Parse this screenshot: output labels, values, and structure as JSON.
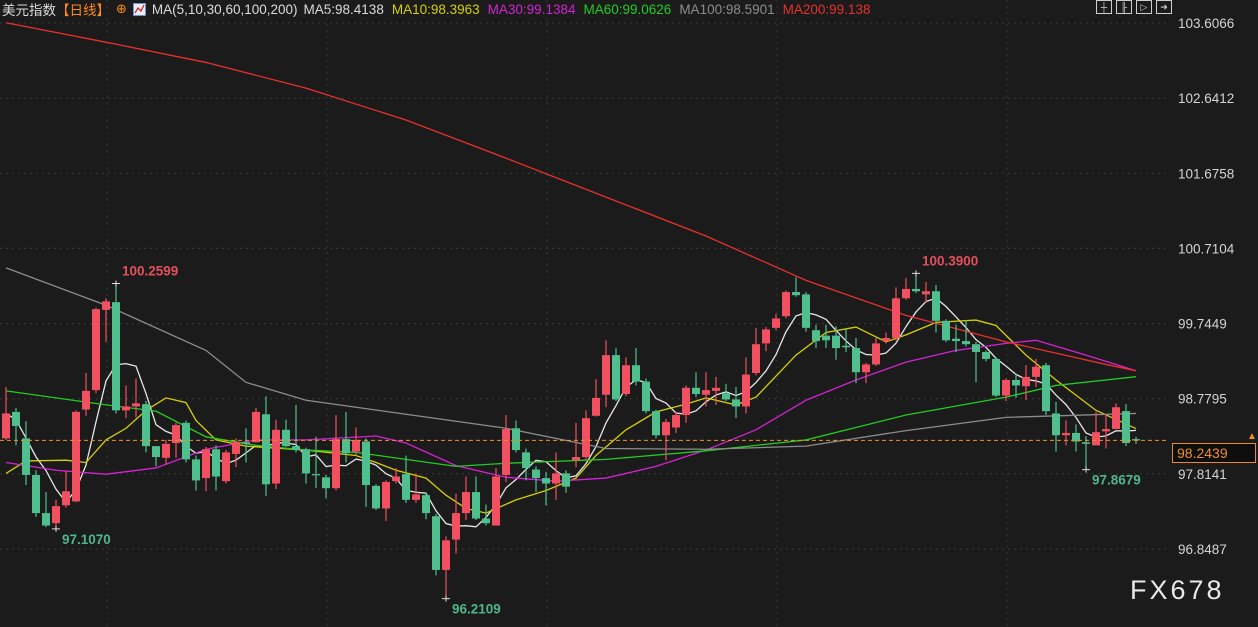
{
  "header": {
    "title": "美元指数",
    "period": "【日线】",
    "period_icon": "target-circle-icon",
    "indicator_icon": "chart-icon",
    "ma_label": "MA(5,10,30,60,100,200)",
    "values": [
      {
        "text": "MA5:98.4138",
        "color": "#dcdcdc"
      },
      {
        "text": "MA10:98.3963",
        "color": "#d4d000"
      },
      {
        "text": "MA30:99.1384",
        "color": "#d422d4"
      },
      {
        "text": "MA60:99.0626",
        "color": "#22cc22"
      },
      {
        "text": "MA100:98.5901",
        "color": "#8c8c8c"
      },
      {
        "text": "MA200:99.138",
        "color": "#e8302c"
      }
    ]
  },
  "toolbar": {
    "icons": [
      "crosshair-icon",
      "zoom-range-icon",
      "play-icon",
      "exit-icon"
    ]
  },
  "watermark": "FX678",
  "chart_data": {
    "type": "candlestick",
    "title": "美元指数",
    "period": "日线",
    "y_axis": {
      "ticks": [
        "103.6066",
        "102.6412",
        "101.6758",
        "100.7104",
        "99.7449",
        "98.7795",
        "97.8141",
        "96.8487"
      ],
      "range": [
        96.21,
        103.6066
      ],
      "position": "right"
    },
    "grid": true,
    "colors": {
      "up": "#f0505f",
      "down": "#4fbf8d",
      "background": "#1b1b1b",
      "last_price": "#ef8e2f"
    },
    "last_price": "98.2439",
    "candles_ohlc": [
      [
        98.27,
        98.93,
        98.25,
        98.59
      ],
      [
        98.61,
        98.66,
        98.18,
        98.43
      ],
      [
        98.27,
        98.49,
        97.67,
        97.8
      ],
      [
        97.8,
        97.86,
        97.26,
        97.31
      ],
      [
        97.31,
        97.58,
        97.13,
        97.15
      ],
      [
        97.18,
        97.48,
        97.107,
        97.4
      ],
      [
        97.41,
        97.85,
        97.38,
        97.59
      ],
      [
        97.46,
        98.63,
        97.45,
        98.61
      ],
      [
        98.64,
        99.11,
        98.56,
        98.88
      ],
      [
        98.89,
        99.95,
        98.85,
        99.93
      ],
      [
        99.92,
        100.07,
        99.51,
        100.03
      ],
      [
        100.02,
        100.2599,
        98.59,
        98.63
      ],
      [
        98.63,
        98.95,
        98.53,
        98.68
      ],
      [
        98.68,
        99.04,
        98.54,
        98.72
      ],
      [
        98.71,
        98.75,
        98.09,
        98.17
      ],
      [
        98.17,
        98.17,
        97.91,
        98.03
      ],
      [
        98.02,
        98.25,
        97.93,
        98.2
      ],
      [
        98.21,
        98.47,
        98.02,
        98.44
      ],
      [
        98.47,
        98.5,
        97.96,
        98.0
      ],
      [
        98.0,
        98.05,
        97.6,
        97.73
      ],
      [
        97.76,
        98.16,
        97.59,
        98.13
      ],
      [
        98.13,
        98.18,
        97.6,
        97.78
      ],
      [
        97.72,
        98.12,
        97.69,
        98.09
      ],
      [
        98.07,
        98.27,
        97.9,
        98.22
      ],
      [
        98.22,
        98.4,
        97.96,
        98.2
      ],
      [
        98.22,
        98.66,
        98.22,
        98.61
      ],
      [
        98.58,
        98.81,
        97.53,
        97.68
      ],
      [
        97.69,
        98.51,
        97.62,
        98.38
      ],
      [
        98.38,
        98.51,
        98.16,
        98.17
      ],
      [
        98.17,
        98.7,
        98.09,
        98.12
      ],
      [
        98.13,
        98.15,
        97.69,
        97.82
      ],
      [
        97.81,
        98.29,
        97.63,
        97.8
      ],
      [
        97.77,
        97.8,
        97.5,
        97.63
      ],
      [
        97.63,
        98.57,
        97.6,
        98.26
      ],
      [
        98.26,
        98.61,
        97.96,
        98.08
      ],
      [
        98.1,
        98.41,
        98.05,
        98.25
      ],
      [
        98.23,
        98.27,
        97.39,
        97.67
      ],
      [
        97.66,
        97.68,
        97.35,
        97.37
      ],
      [
        97.37,
        97.73,
        97.21,
        97.71
      ],
      [
        97.72,
        97.89,
        97.69,
        97.78
      ],
      [
        97.81,
        98.05,
        97.44,
        97.48
      ],
      [
        97.48,
        97.82,
        97.44,
        97.55
      ],
      [
        97.54,
        97.57,
        97.23,
        97.31
      ],
      [
        97.27,
        97.3,
        96.51,
        96.58
      ],
      [
        96.58,
        97.01,
        96.2109,
        96.96
      ],
      [
        96.97,
        97.56,
        96.79,
        97.31
      ],
      [
        97.31,
        97.78,
        97.22,
        97.58
      ],
      [
        97.58,
        97.78,
        97.22,
        97.24
      ],
      [
        97.24,
        97.42,
        97.15,
        97.18
      ],
      [
        97.15,
        97.89,
        97.15,
        97.78
      ],
      [
        97.8,
        98.57,
        97.71,
        98.39
      ],
      [
        98.4,
        98.5,
        98.09,
        98.12
      ],
      [
        98.09,
        98.14,
        97.73,
        97.89
      ],
      [
        97.87,
        97.91,
        97.58,
        97.76
      ],
      [
        97.76,
        97.84,
        97.41,
        97.69
      ],
      [
        97.69,
        98.09,
        97.48,
        97.82
      ],
      [
        97.82,
        97.86,
        97.57,
        97.65
      ],
      [
        97.99,
        98.47,
        97.9,
        98.03
      ],
      [
        98.03,
        98.63,
        97.99,
        98.53
      ],
      [
        98.56,
        99.03,
        98.55,
        98.79
      ],
      [
        98.83,
        99.53,
        98.67,
        99.34
      ],
      [
        99.34,
        99.43,
        98.75,
        98.77
      ],
      [
        98.84,
        99.31,
        98.81,
        99.21
      ],
      [
        99.21,
        99.43,
        98.95,
        99.0
      ],
      [
        99.0,
        99.04,
        98.59,
        98.62
      ],
      [
        98.62,
        98.64,
        98.27,
        98.31
      ],
      [
        98.31,
        98.52,
        97.99,
        98.48
      ],
      [
        98.41,
        98.61,
        98.34,
        98.57
      ],
      [
        98.57,
        98.95,
        98.47,
        98.92
      ],
      [
        98.92,
        99.12,
        98.8,
        98.84
      ],
      [
        98.83,
        99.12,
        98.68,
        98.89
      ],
      [
        98.88,
        99.06,
        98.7,
        98.92
      ],
      [
        98.85,
        98.97,
        98.75,
        98.77
      ],
      [
        98.77,
        98.93,
        98.53,
        98.68
      ],
      [
        98.68,
        99.31,
        98.59,
        99.09
      ],
      [
        99.11,
        99.69,
        99.08,
        99.48
      ],
      [
        99.49,
        99.7,
        99.39,
        99.67
      ],
      [
        99.69,
        99.87,
        99.66,
        99.81
      ],
      [
        99.84,
        100.17,
        99.81,
        100.15
      ],
      [
        100.15,
        100.34,
        100.09,
        100.11
      ],
      [
        100.12,
        100.15,
        99.64,
        99.69
      ],
      [
        99.66,
        99.73,
        99.43,
        99.52
      ],
      [
        99.59,
        99.73,
        99.43,
        99.53
      ],
      [
        99.59,
        99.71,
        99.28,
        99.43
      ],
      [
        99.46,
        99.69,
        99.38,
        99.44
      ],
      [
        99.43,
        99.56,
        98.98,
        99.12
      ],
      [
        99.12,
        99.24,
        98.98,
        99.22
      ],
      [
        99.22,
        99.56,
        99.2,
        99.49
      ],
      [
        99.52,
        99.63,
        99.49,
        99.56
      ],
      [
        99.56,
        100.21,
        99.53,
        100.07
      ],
      [
        100.07,
        100.33,
        100.05,
        100.19
      ],
      [
        100.19,
        100.39,
        100.14,
        100.16
      ],
      [
        100.12,
        100.28,
        100.01,
        100.16
      ],
      [
        100.16,
        100.24,
        99.63,
        99.78
      ],
      [
        99.78,
        99.8,
        99.51,
        99.53
      ],
      [
        99.55,
        99.73,
        99.38,
        99.52
      ],
      [
        99.52,
        99.79,
        99.45,
        99.48
      ],
      [
        99.48,
        99.51,
        98.99,
        99.38
      ],
      [
        99.38,
        99.4,
        99.26,
        99.29
      ],
      [
        99.29,
        99.31,
        98.8,
        98.82
      ],
      [
        98.82,
        99.04,
        98.75,
        99.02
      ],
      [
        99.02,
        99.1,
        98.79,
        98.95
      ],
      [
        98.94,
        99.21,
        98.76,
        99.06
      ],
      [
        99.06,
        99.29,
        98.93,
        99.19
      ],
      [
        99.21,
        99.24,
        98.57,
        98.62
      ],
      [
        98.59,
        98.74,
        98.1,
        98.31
      ],
      [
        98.31,
        98.5,
        98.18,
        98.34
      ],
      [
        98.34,
        98.45,
        98.1,
        98.23
      ],
      [
        98.22,
        98.3,
        97.8679,
        98.2
      ],
      [
        98.18,
        98.61,
        98.18,
        98.35
      ],
      [
        98.36,
        98.58,
        98.14,
        98.39
      ],
      [
        98.39,
        98.72,
        98.39,
        98.67
      ],
      [
        98.62,
        98.71,
        98.17,
        98.21
      ],
      [
        98.26,
        98.29,
        98.2,
        98.2439
      ]
    ],
    "moving_averages": [
      {
        "name": "MA5",
        "color": "#e6e6e6",
        "from_closes": 5
      },
      {
        "name": "MA10",
        "color": "#d4d000",
        "points": [
          [
            0,
            97.82
          ],
          [
            2,
            97.98
          ],
          [
            6,
            97.99
          ],
          [
            8,
            97.96
          ],
          [
            10,
            98.25
          ],
          [
            12,
            98.4
          ],
          [
            14,
            98.63
          ],
          [
            16,
            98.79
          ],
          [
            18,
            98.73
          ],
          [
            19,
            98.5
          ],
          [
            21,
            98.25
          ],
          [
            24,
            98.17
          ],
          [
            30,
            98.12
          ],
          [
            35,
            98.05
          ],
          [
            37,
            97.96
          ],
          [
            39,
            97.86
          ],
          [
            42,
            97.76
          ],
          [
            44,
            97.54
          ],
          [
            46,
            97.37
          ],
          [
            48,
            97.31
          ],
          [
            51,
            97.48
          ],
          [
            54,
            97.6
          ],
          [
            57,
            97.76
          ],
          [
            59,
            98.05
          ],
          [
            62,
            98.38
          ],
          [
            65,
            98.61
          ],
          [
            68,
            98.71
          ],
          [
            70,
            98.79
          ],
          [
            73,
            98.7
          ],
          [
            75,
            98.8
          ],
          [
            79,
            99.34
          ],
          [
            82,
            99.63
          ],
          [
            85,
            99.7
          ],
          [
            88,
            99.51
          ],
          [
            90,
            99.6
          ],
          [
            93,
            99.76
          ],
          [
            97,
            99.79
          ],
          [
            99,
            99.72
          ],
          [
            102,
            99.34
          ],
          [
            105,
            99.02
          ],
          [
            109,
            98.63
          ],
          [
            113,
            98.3963
          ]
        ]
      },
      {
        "name": "MA30",
        "color": "#d422d4",
        "points": [
          [
            0,
            97.96
          ],
          [
            5,
            97.86
          ],
          [
            10,
            97.81
          ],
          [
            15,
            97.89
          ],
          [
            20,
            98.13
          ],
          [
            25,
            98.25
          ],
          [
            30,
            98.25
          ],
          [
            37,
            98.3
          ],
          [
            40,
            98.21
          ],
          [
            45,
            97.92
          ],
          [
            50,
            97.77
          ],
          [
            55,
            97.72
          ],
          [
            60,
            97.76
          ],
          [
            65,
            97.91
          ],
          [
            70,
            98.12
          ],
          [
            75,
            98.38
          ],
          [
            80,
            98.76
          ],
          [
            85,
            99.02
          ],
          [
            90,
            99.25
          ],
          [
            95,
            99.4
          ],
          [
            100,
            99.49
          ],
          [
            103,
            99.53
          ],
          [
            108,
            99.34
          ],
          [
            113,
            99.1384
          ]
        ]
      },
      {
        "name": "MA60",
        "color": "#22cc22",
        "points": [
          [
            0,
            98.88
          ],
          [
            10,
            98.7
          ],
          [
            15,
            98.62
          ],
          [
            20,
            98.29
          ],
          [
            25,
            98.18
          ],
          [
            30,
            98.12
          ],
          [
            35,
            98.09
          ],
          [
            40,
            98.0
          ],
          [
            45,
            97.91
          ],
          [
            50,
            97.95
          ],
          [
            60,
            98.0
          ],
          [
            70,
            98.11
          ],
          [
            80,
            98.25
          ],
          [
            90,
            98.57
          ],
          [
            100,
            98.8
          ],
          [
            105,
            98.95
          ],
          [
            113,
            99.0626
          ]
        ]
      },
      {
        "name": "MA100",
        "color": "#8c8c8c",
        "points": [
          [
            0,
            100.46
          ],
          [
            10,
            99.98
          ],
          [
            20,
            99.4
          ],
          [
            24,
            98.99
          ],
          [
            30,
            98.76
          ],
          [
            40,
            98.58
          ],
          [
            50,
            98.4
          ],
          [
            60,
            98.14
          ],
          [
            70,
            98.13
          ],
          [
            80,
            98.17
          ],
          [
            90,
            98.37
          ],
          [
            100,
            98.54
          ],
          [
            113,
            98.5901
          ]
        ]
      },
      {
        "name": "MA200",
        "color": "#e8302c",
        "points": [
          [
            0,
            103.61
          ],
          [
            10,
            103.36
          ],
          [
            20,
            103.1
          ],
          [
            30,
            102.77
          ],
          [
            40,
            102.36
          ],
          [
            50,
            101.87
          ],
          [
            60,
            101.37
          ],
          [
            70,
            100.87
          ],
          [
            80,
            100.3
          ],
          [
            90,
            99.85
          ],
          [
            100,
            99.51
          ],
          [
            110,
            99.22
          ],
          [
            113,
            99.138
          ]
        ]
      }
    ],
    "annotations": [
      {
        "label": "100.2599",
        "bar": 11,
        "value": 100.2599,
        "kind": "high",
        "color": "#e2505c"
      },
      {
        "label": "97.1070",
        "bar": 5,
        "value": 97.107,
        "kind": "low",
        "color": "#4fb68a"
      },
      {
        "label": "96.2109",
        "bar": 44,
        "value": 96.2109,
        "kind": "low",
        "color": "#4fb68a"
      },
      {
        "label": "100.3900",
        "bar": 91,
        "value": 100.39,
        "kind": "high",
        "color": "#e2505c"
      },
      {
        "label": "97.8679",
        "bar": 108,
        "value": 97.8679,
        "kind": "low",
        "color": "#4fb68a"
      }
    ]
  }
}
